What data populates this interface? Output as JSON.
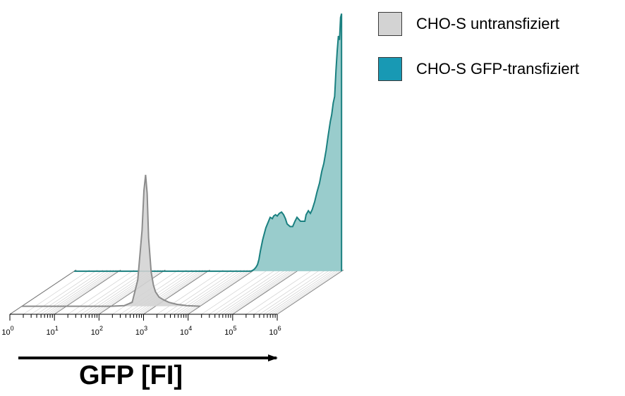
{
  "chart_data": {
    "type": "area",
    "xscale": "log",
    "xlim": [
      1,
      1000000
    ],
    "xticks": [
      {
        "base": "10",
        "exp": "0"
      },
      {
        "base": "10",
        "exp": "1"
      },
      {
        "base": "10",
        "exp": "2"
      },
      {
        "base": "10",
        "exp": "3"
      },
      {
        "base": "10",
        "exp": "4"
      },
      {
        "base": "10",
        "exp": "5"
      },
      {
        "base": "10",
        "exp": "6"
      }
    ],
    "xlabel": "GFP [FI]",
    "legend_position": "top-right",
    "series": [
      {
        "name": "CHO-S untransfiziert",
        "color": "#d3d3d3",
        "line_color": "#8c8c8c",
        "x": [
          1,
          100,
          200,
          300,
          400,
          500,
          550,
          600,
          650,
          700,
          800,
          900,
          1000,
          1200,
          1500,
          2000,
          3000,
          5000,
          10000
        ],
        "y": [
          0,
          0,
          0.5,
          3,
          20,
          58,
          88,
          100,
          86,
          52,
          26,
          16,
          11,
          7,
          5,
          3,
          1.5,
          0.5,
          0
        ]
      },
      {
        "name": "CHO-S GFP-transfiziert",
        "color": "#99cccc",
        "line_color": "#1a8080",
        "x": [
          1,
          9000,
          10000,
          11000,
          12000,
          13000,
          14000,
          15000,
          17000,
          20000,
          23000,
          25000,
          28000,
          30000,
          33000,
          36000,
          40000,
          45000,
          50000,
          55000,
          60000,
          70000,
          80000,
          90000,
          100000,
          120000,
          140000,
          150000,
          160000,
          180000,
          200000,
          220000,
          250000,
          280000,
          320000,
          360000,
          400000,
          450000,
          500000,
          560000,
          600000,
          650000,
          700000,
          750000,
          800000,
          850000,
          900000,
          950000,
          1000000
        ],
        "y": [
          0,
          0,
          0.5,
          1.5,
          3,
          5,
          9,
          15,
          24,
          33,
          38,
          41,
          40,
          42,
          43,
          42,
          44,
          45,
          43,
          40,
          36,
          34,
          34,
          38,
          41,
          38,
          38,
          38,
          43,
          46,
          44,
          47,
          53,
          60,
          67,
          76,
          82,
          92,
          103,
          114,
          119,
          128,
          133,
          153,
          168,
          179,
          176,
          193,
          196
        ]
      }
    ]
  },
  "legend": {
    "items": [
      {
        "label": "CHO-S untransfiziert",
        "color": "#d3d3d3"
      },
      {
        "label": "CHO-S GFP-transfiziert",
        "color": "#1899b4"
      }
    ]
  }
}
